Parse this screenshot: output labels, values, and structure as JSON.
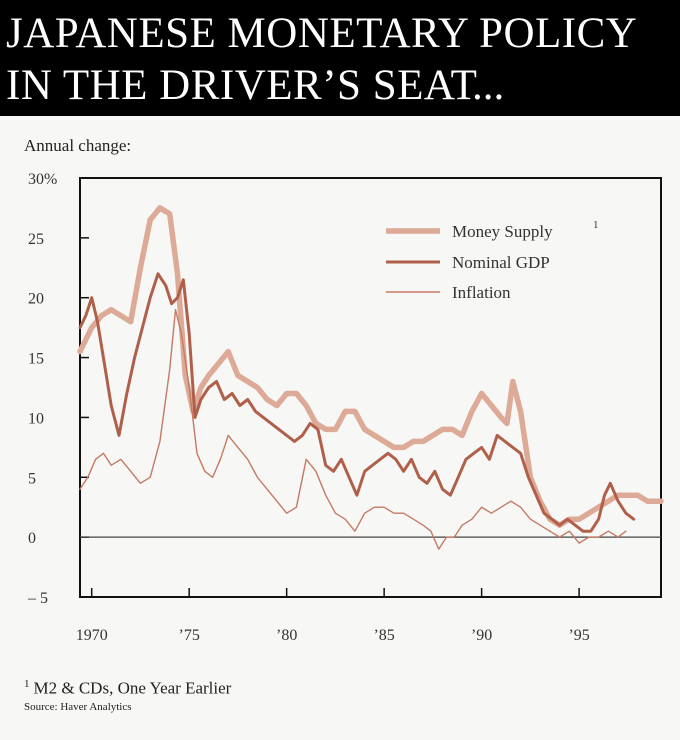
{
  "header": {
    "line1": "JAPANESE MONETARY POLICY",
    "line2": "IN THE DRIVER’S SEAT",
    "ellipsis": "..."
  },
  "subtitle": "Annual change:",
  "footnote": {
    "marker": "1",
    "text": "M2 & CDs, One Year Earlier",
    "source": "Source: Haver Analytics"
  },
  "colors": {
    "money_supply": "#dcaa96",
    "nominal_gdp": "#b0604a",
    "inflation": "#c57a64",
    "background": "#f7f7f5",
    "header_bg": "#000000"
  },
  "chart_data": {
    "type": "line",
    "title": "",
    "xlabel": "",
    "ylabel": "Annual change:",
    "xlim": [
      1969.4,
      1999.2
    ],
    "ylim": [
      -5,
      30
    ],
    "yticks": [
      {
        "value": 30,
        "label": "30%"
      },
      {
        "value": 25,
        "label": "25"
      },
      {
        "value": 20,
        "label": "20"
      },
      {
        "value": 15,
        "label": "15"
      },
      {
        "value": 10,
        "label": "10"
      },
      {
        "value": 5,
        "label": "5"
      },
      {
        "value": 0,
        "label": "0"
      },
      {
        "value": -5,
        "label": "– 5"
      }
    ],
    "xticks": [
      {
        "value": 1970,
        "label": "1970"
      },
      {
        "value": 1975,
        "label": "’75"
      },
      {
        "value": 1980,
        "label": "’80"
      },
      {
        "value": 1985,
        "label": "’85"
      },
      {
        "value": 1990,
        "label": "’90"
      },
      {
        "value": 1995,
        "label": "’95"
      }
    ],
    "zero_line": true,
    "legend_position": "top-right",
    "series": [
      {
        "name": "Money Supply",
        "name_superscript": "1",
        "x": [
          1969.4,
          1969.7,
          1970.0,
          1970.5,
          1971.0,
          1971.5,
          1972.0,
          1972.5,
          1973.0,
          1973.5,
          1974.0,
          1974.4,
          1974.8,
          1975.2,
          1975.6,
          1976.0,
          1976.5,
          1977.0,
          1977.5,
          1978.0,
          1978.5,
          1979.0,
          1979.5,
          1980.0,
          1980.5,
          1981.0,
          1981.5,
          1982.0,
          1982.5,
          1983.0,
          1983.5,
          1984.0,
          1984.5,
          1985.0,
          1985.5,
          1986.0,
          1986.5,
          1987.0,
          1987.5,
          1988.0,
          1988.5,
          1989.0,
          1989.5,
          1990.0,
          1990.5,
          1991.0,
          1991.3,
          1991.6,
          1992.0,
          1992.5,
          1993.0,
          1993.5,
          1994.0,
          1994.5,
          1995.0,
          1995.5,
          1996.0,
          1996.5,
          1997.0,
          1997.5,
          1998.0,
          1998.5,
          1999.2
        ],
        "y": [
          15.5,
          16.5,
          17.5,
          18.5,
          19.0,
          18.5,
          18.0,
          22.5,
          26.5,
          27.5,
          27.0,
          22.0,
          13.5,
          10.5,
          12.5,
          13.5,
          14.5,
          15.5,
          13.5,
          13.0,
          12.5,
          11.5,
          11.0,
          12.0,
          12.0,
          11.0,
          9.5,
          9.0,
          9.0,
          10.5,
          10.5,
          9.0,
          8.5,
          8.0,
          7.5,
          7.5,
          8.0,
          8.0,
          8.5,
          9.0,
          9.0,
          8.5,
          10.5,
          12.0,
          11.0,
          10.0,
          9.5,
          13.0,
          10.5,
          5.0,
          3.0,
          1.5,
          1.0,
          1.5,
          1.5,
          2.0,
          2.5,
          3.0,
          3.5,
          3.5,
          3.5,
          3.0,
          3.0
        ]
      },
      {
        "name": "Nominal GDP",
        "x": [
          1969.4,
          1969.7,
          1970.0,
          1970.3,
          1970.6,
          1971.0,
          1971.4,
          1971.8,
          1972.2,
          1972.6,
          1973.0,
          1973.4,
          1973.8,
          1974.1,
          1974.4,
          1974.7,
          1975.0,
          1975.3,
          1975.6,
          1976.0,
          1976.4,
          1976.8,
          1977.2,
          1977.6,
          1978.0,
          1978.4,
          1978.8,
          1979.2,
          1979.6,
          1980.0,
          1980.4,
          1980.8,
          1981.2,
          1981.6,
          1982.0,
          1982.4,
          1982.8,
          1983.2,
          1983.6,
          1984.0,
          1984.4,
          1984.8,
          1985.2,
          1985.6,
          1986.0,
          1986.4,
          1986.8,
          1987.2,
          1987.6,
          1988.0,
          1988.4,
          1988.8,
          1989.2,
          1989.6,
          1990.0,
          1990.4,
          1990.8,
          1991.2,
          1991.6,
          1992.0,
          1992.4,
          1992.8,
          1993.2,
          1993.6,
          1994.0,
          1994.4,
          1994.8,
          1995.2,
          1995.6,
          1996.0,
          1996.3,
          1996.6,
          1997.0,
          1997.4,
          1997.8
        ],
        "y": [
          17.5,
          18.5,
          20.0,
          18.0,
          15.0,
          11.0,
          8.5,
          12.0,
          15.0,
          17.5,
          20.0,
          22.0,
          21.0,
          19.5,
          20.0,
          21.5,
          17.0,
          10.0,
          11.5,
          12.5,
          13.0,
          11.5,
          12.0,
          11.0,
          11.5,
          10.5,
          10.0,
          9.5,
          9.0,
          8.5,
          8.0,
          8.5,
          9.5,
          9.0,
          6.0,
          5.5,
          6.5,
          5.0,
          3.5,
          5.5,
          6.0,
          6.5,
          7.0,
          6.5,
          5.5,
          6.5,
          5.0,
          4.5,
          5.5,
          4.0,
          3.5,
          5.0,
          6.5,
          7.0,
          7.5,
          6.5,
          8.5,
          8.0,
          7.5,
          7.0,
          5.0,
          3.5,
          2.0,
          1.5,
          1.0,
          1.5,
          1.0,
          0.5,
          0.5,
          1.5,
          3.5,
          4.5,
          3.0,
          2.0,
          1.5
        ]
      },
      {
        "name": "Inflation",
        "x": [
          1969.4,
          1969.8,
          1970.2,
          1970.6,
          1971.0,
          1971.5,
          1972.0,
          1972.5,
          1973.0,
          1973.5,
          1974.0,
          1974.3,
          1974.6,
          1975.0,
          1975.4,
          1975.8,
          1976.2,
          1976.6,
          1977.0,
          1977.5,
          1978.0,
          1978.5,
          1979.0,
          1979.5,
          1980.0,
          1980.5,
          1981.0,
          1981.5,
          1982.0,
          1982.5,
          1983.0,
          1983.5,
          1984.0,
          1984.5,
          1985.0,
          1985.5,
          1986.0,
          1986.5,
          1987.0,
          1987.4,
          1987.8,
          1988.2,
          1988.6,
          1989.0,
          1989.5,
          1990.0,
          1990.5,
          1991.0,
          1991.5,
          1992.0,
          1992.5,
          1993.0,
          1993.5,
          1994.0,
          1994.5,
          1995.0,
          1995.5,
          1996.0,
          1996.5,
          1997.0,
          1997.4
        ],
        "y": [
          4.0,
          5.0,
          6.5,
          7.0,
          6.0,
          6.5,
          5.5,
          4.5,
          5.0,
          8.0,
          14.0,
          19.0,
          17.0,
          12.5,
          7.0,
          5.5,
          5.0,
          6.5,
          8.5,
          7.5,
          6.5,
          5.0,
          4.0,
          3.0,
          2.0,
          2.5,
          6.5,
          5.5,
          3.5,
          2.0,
          1.5,
          0.5,
          2.0,
          2.5,
          2.5,
          2.0,
          2.0,
          1.5,
          1.0,
          0.5,
          -1.0,
          0.0,
          0.0,
          1.0,
          1.5,
          2.5,
          2.0,
          2.5,
          3.0,
          2.5,
          1.5,
          1.0,
          0.5,
          0.0,
          0.5,
          -0.5,
          0.0,
          0.0,
          0.5,
          0.0,
          0.5
        ]
      }
    ]
  }
}
